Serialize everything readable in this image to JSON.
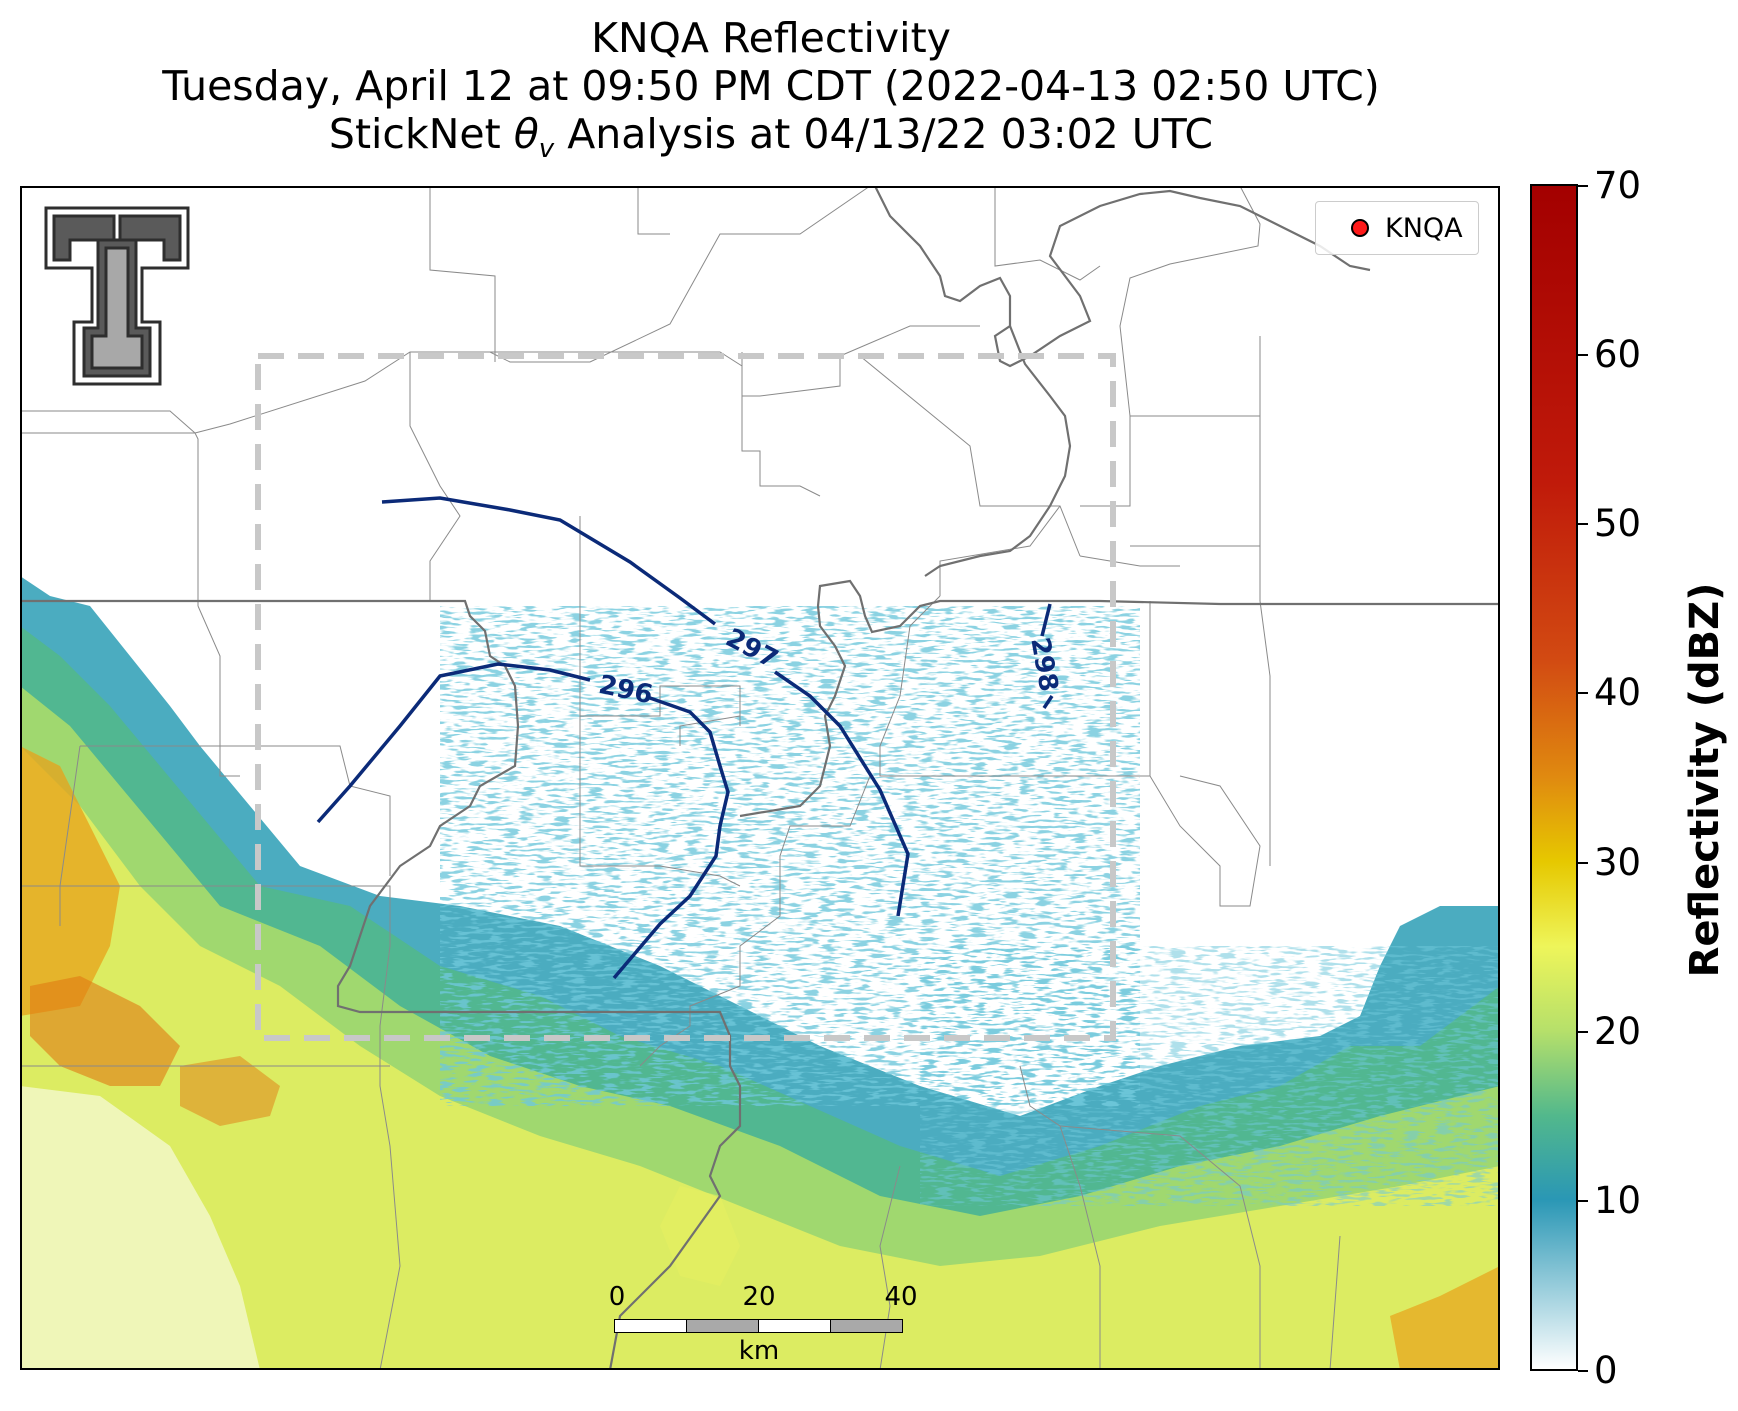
{
  "title": {
    "line1": "KNQA Reflectivity",
    "line2": "Tuesday, April 12 at 09:50 PM CDT (2022-04-13 02:50 UTC)",
    "line3_prefix": "StickNet ",
    "line3_symbol": "θ",
    "line3_subscript": "v",
    "line3_suffix": " Analysis at 04/13/22 03:02 UTC"
  },
  "legend": {
    "label": "KNQA",
    "marker_color": "#ff1a1a"
  },
  "contours": [
    {
      "label": "296",
      "color": "#0b2a78"
    },
    {
      "label": "297",
      "color": "#0b2a78"
    },
    {
      "label": "298",
      "color": "#0b2a78"
    }
  ],
  "scalebar": {
    "ticks": [
      "0",
      "20",
      "40"
    ],
    "unit": "km"
  },
  "colorbar": {
    "title": "Reflectivity (dBZ)",
    "range": [
      0,
      70
    ],
    "tick_labels": [
      "0",
      "10",
      "20",
      "30",
      "40",
      "50",
      "60",
      "70"
    ]
  },
  "logo": {
    "name": "Texas Tech double-T"
  },
  "colors": {
    "contour": "#0b2a78",
    "analysis_box": "#c8c8c8",
    "boundaries": "#8a8a8a",
    "state_lines": "#707070"
  }
}
